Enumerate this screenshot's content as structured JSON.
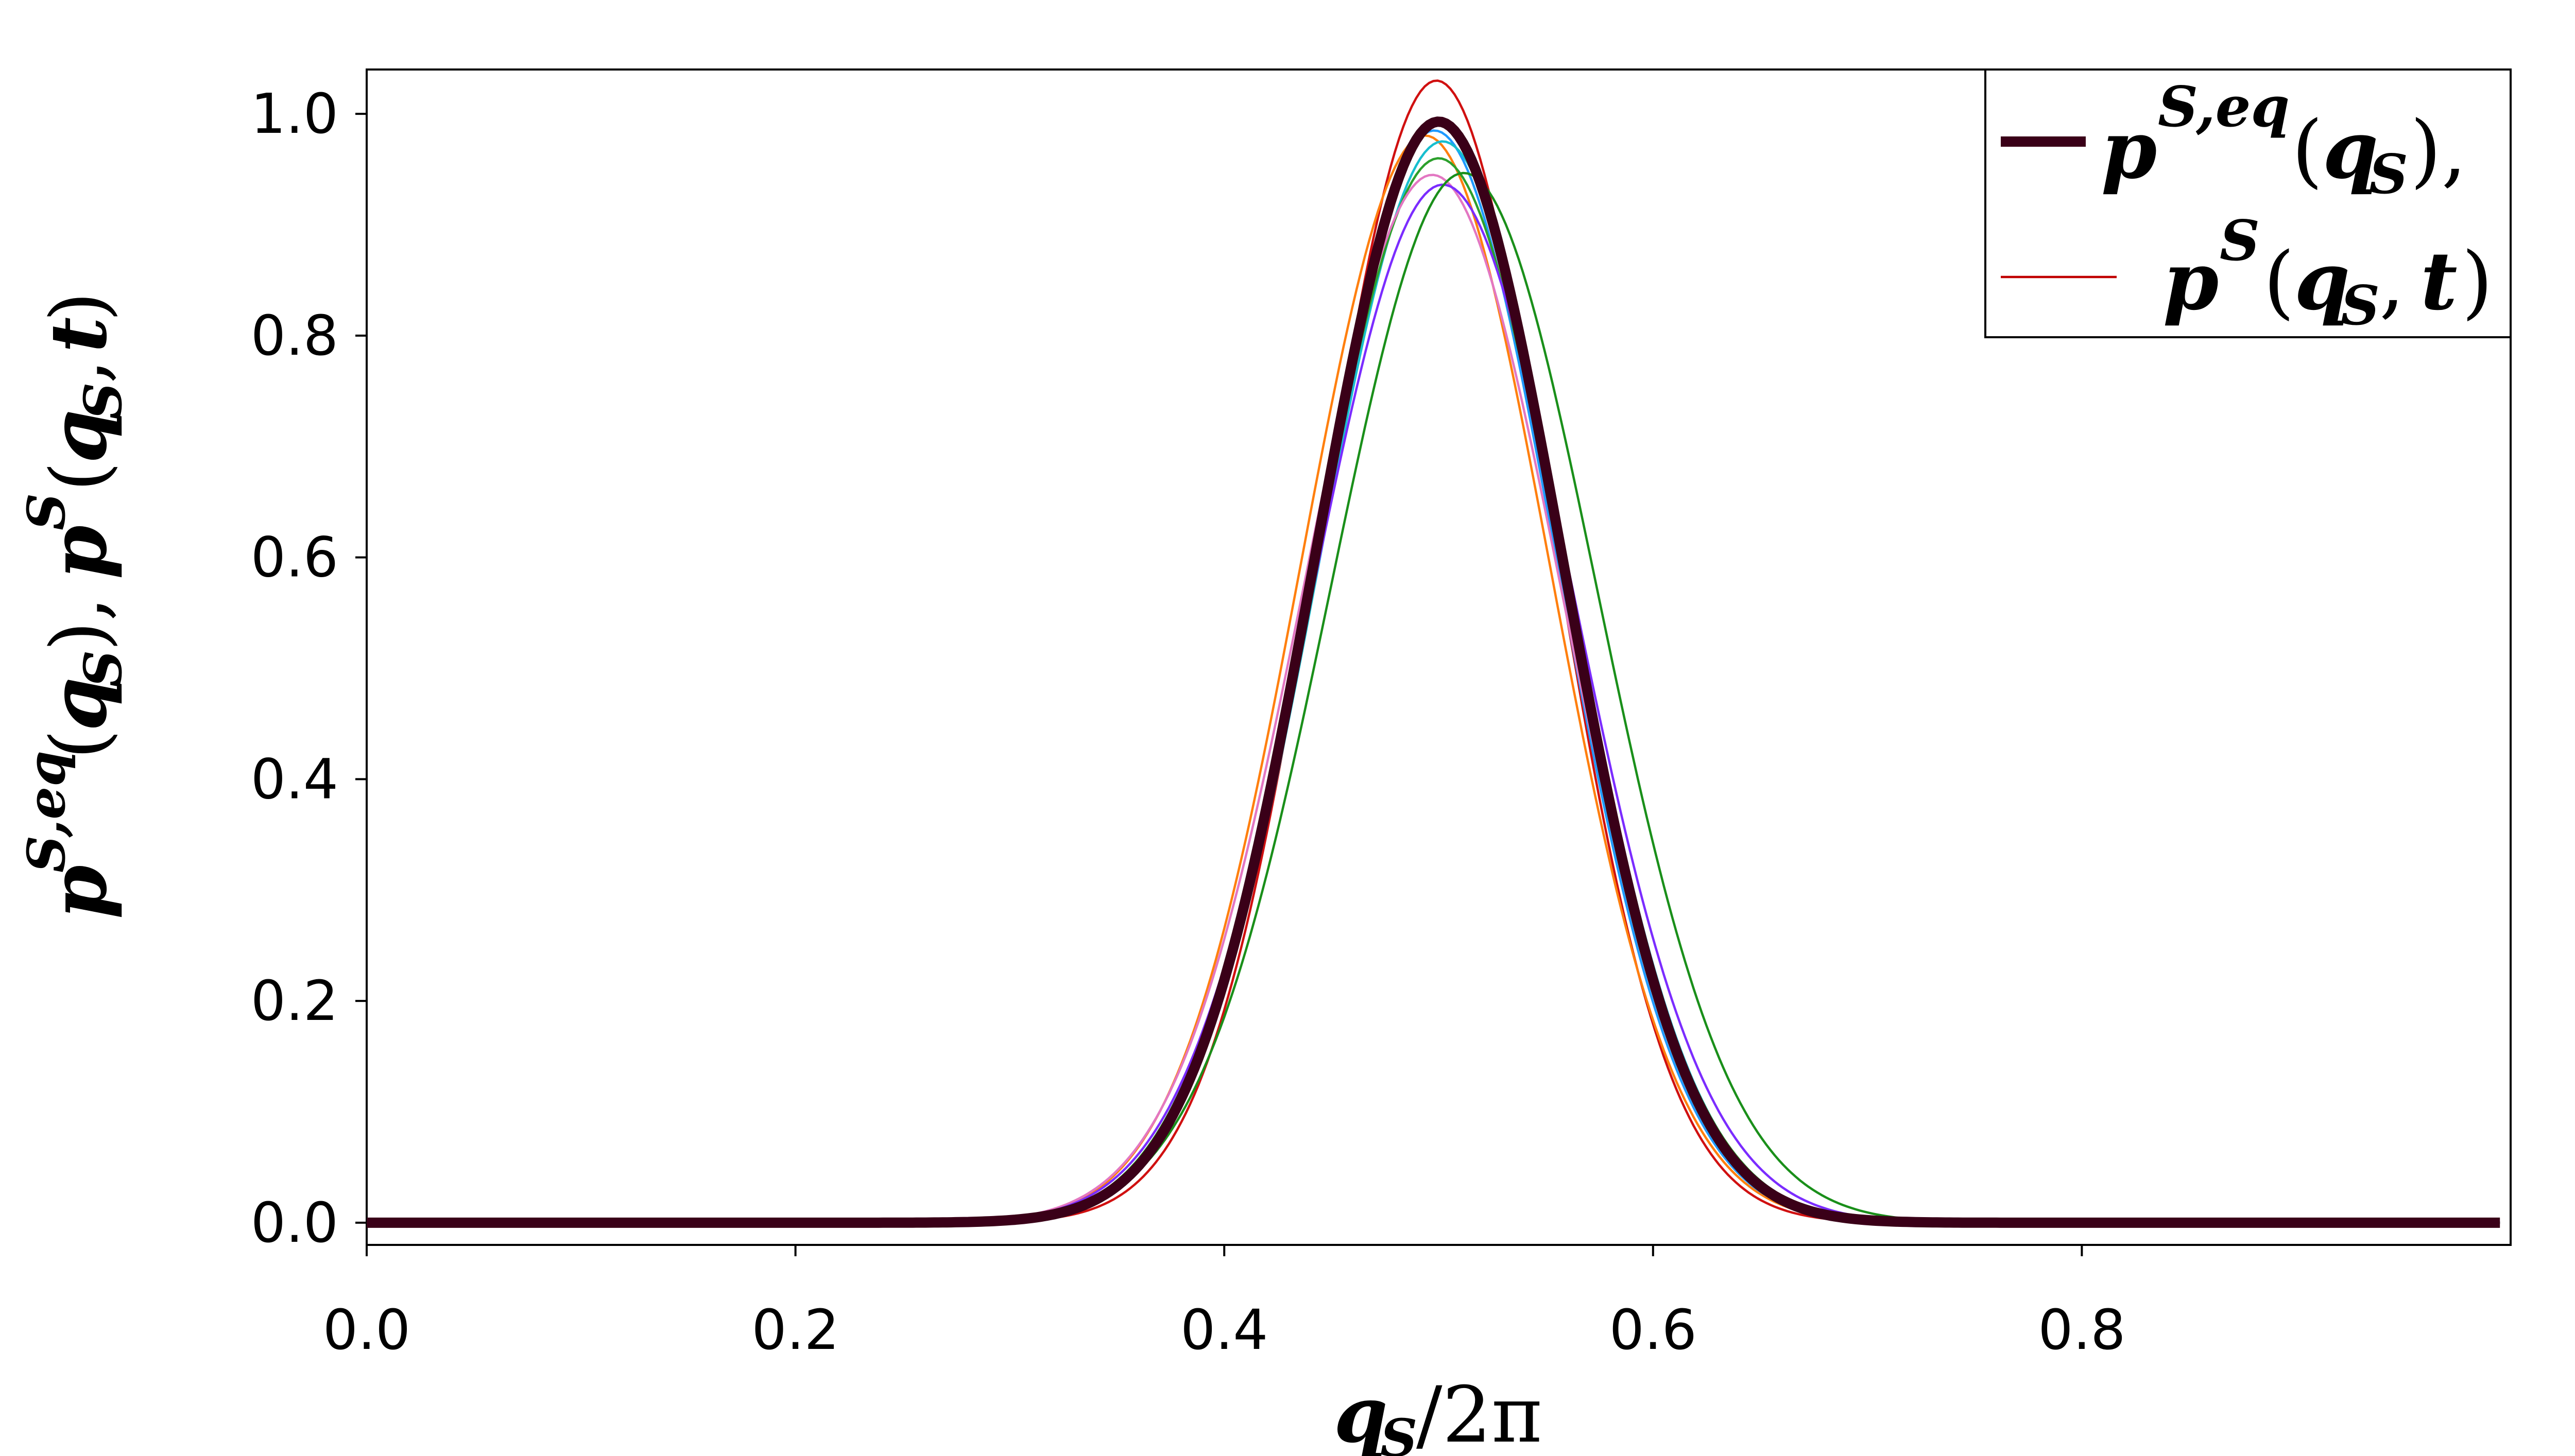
{
  "chart_data": {
    "type": "line",
    "xlabel": "q_S /2π",
    "ylabel": "p^{S,eq}(q_S), p^S(q_S, t)",
    "xlim": [
      0.0,
      1.0
    ],
    "ylim": [
      -0.02,
      1.04
    ],
    "x_ticks": [
      "0.0",
      "0.2",
      "0.4",
      "0.6",
      "0.8"
    ],
    "y_ticks": [
      "0.0",
      "0.2",
      "0.4",
      "0.6",
      "0.8",
      "1.0"
    ],
    "x_tick_values": [
      0.0,
      0.2,
      0.4,
      0.6,
      0.8
    ],
    "y_tick_values": [
      0.0,
      0.2,
      0.4,
      0.6,
      0.8,
      1.0
    ],
    "grid": false,
    "legend_position": "top-right",
    "legend": [
      {
        "label": "p^{S,eq}(q_S),",
        "color": "#3a0018",
        "style": "thick"
      },
      {
        "label": "p^S(q_S, t)",
        "color": "#c00000",
        "style": "thin"
      }
    ],
    "series": [
      {
        "name": "p^{S,eq}(q_S)",
        "color": "#3a0018",
        "peak": 0.993,
        "center": 0.5,
        "sigma": 0.0575,
        "skew": 0.0,
        "width": "thick"
      },
      {
        "color": "#d01010",
        "peak": 1.03,
        "center": 0.499,
        "sigma": 0.054,
        "skew": 0.0
      },
      {
        "color": "#ff7f0e",
        "peak": 0.98,
        "center": 0.492,
        "sigma": 0.058,
        "skew": 0.03
      },
      {
        "color": "#1f9aff",
        "peak": 0.985,
        "center": 0.498,
        "sigma": 0.057,
        "skew": 0.0
      },
      {
        "color": "#17becf",
        "peak": 0.975,
        "center": 0.503,
        "sigma": 0.058,
        "skew": -0.02
      },
      {
        "color": "#2ca02c",
        "peak": 0.96,
        "center": 0.5,
        "sigma": 0.059,
        "skew": 0.0
      },
      {
        "color": "#e377c2",
        "peak": 0.945,
        "center": 0.497,
        "sigma": 0.06,
        "skew": 0.0
      },
      {
        "color": "#7b2cff",
        "peak": 0.935,
        "center": 0.505,
        "sigma": 0.061,
        "skew": -0.05
      },
      {
        "color": "#1a8f1a",
        "peak": 0.945,
        "center": 0.508,
        "sigma": 0.062,
        "skew": 0.06
      }
    ]
  }
}
